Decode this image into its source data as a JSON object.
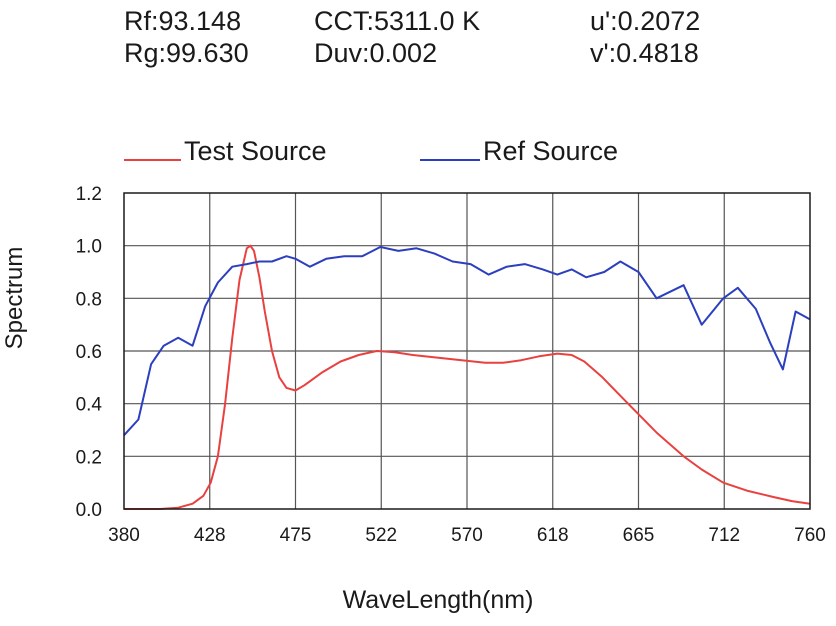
{
  "metrics": {
    "rf": "Rf:93.148",
    "rg": "Rg:99.630",
    "cct": "CCT:5311.0 K",
    "duv": "Duv:0.002",
    "u_prime": "u':0.2072",
    "v_prime": "v':0.4818"
  },
  "chart_data": {
    "type": "line",
    "xlabel": "WaveLength(nm)",
    "ylabel": "Spectrum",
    "xlim": [
      380,
      760
    ],
    "ylim": [
      0,
      1.2
    ],
    "x_ticks": [
      "380",
      "428",
      "475",
      "522",
      "570",
      "618",
      "665",
      "712",
      "760"
    ],
    "y_ticks": [
      "0.0",
      "0.2",
      "0.4",
      "0.6",
      "0.8",
      "1.0",
      "1.2"
    ],
    "grid": true,
    "legend_position": "top",
    "series": [
      {
        "name": "Test Source",
        "color": "#e8413f",
        "x": [
          380,
          390,
          400,
          410,
          418,
          424,
          428,
          432,
          436,
          440,
          444,
          448,
          450,
          452,
          455,
          458,
          462,
          466,
          470,
          475,
          480,
          490,
          500,
          510,
          520,
          530,
          540,
          560,
          580,
          590,
          600,
          610,
          620,
          628,
          635,
          645,
          655,
          665,
          675,
          690,
          700,
          712,
          725,
          740,
          750,
          760
        ],
        "values": [
          0.0,
          0.0,
          0.0,
          0.005,
          0.02,
          0.05,
          0.1,
          0.2,
          0.4,
          0.65,
          0.87,
          0.99,
          1.0,
          0.98,
          0.88,
          0.75,
          0.6,
          0.5,
          0.46,
          0.45,
          0.47,
          0.52,
          0.56,
          0.585,
          0.6,
          0.595,
          0.585,
          0.57,
          0.555,
          0.555,
          0.565,
          0.58,
          0.59,
          0.585,
          0.56,
          0.5,
          0.43,
          0.36,
          0.29,
          0.2,
          0.15,
          0.1,
          0.07,
          0.045,
          0.03,
          0.02
        ]
      },
      {
        "name": "Ref Source",
        "color": "#2b3fbf",
        "x": [
          380,
          388,
          395,
          402,
          410,
          418,
          425,
          432,
          440,
          448,
          455,
          462,
          470,
          475,
          483,
          492,
          502,
          512,
          522,
          532,
          542,
          552,
          562,
          572,
          582,
          592,
          602,
          612,
          620,
          628,
          636,
          646,
          655,
          665,
          675,
          690,
          700,
          712,
          720,
          730,
          738,
          745,
          752,
          760
        ],
        "values": [
          0.28,
          0.34,
          0.55,
          0.62,
          0.65,
          0.62,
          0.77,
          0.86,
          0.92,
          0.93,
          0.94,
          0.94,
          0.96,
          0.95,
          0.92,
          0.95,
          0.96,
          0.96,
          0.995,
          0.98,
          0.99,
          0.97,
          0.94,
          0.93,
          0.89,
          0.92,
          0.93,
          0.91,
          0.89,
          0.91,
          0.88,
          0.9,
          0.94,
          0.9,
          0.8,
          0.85,
          0.7,
          0.8,
          0.84,
          0.76,
          0.63,
          0.53,
          0.75,
          0.72
        ]
      }
    ]
  }
}
